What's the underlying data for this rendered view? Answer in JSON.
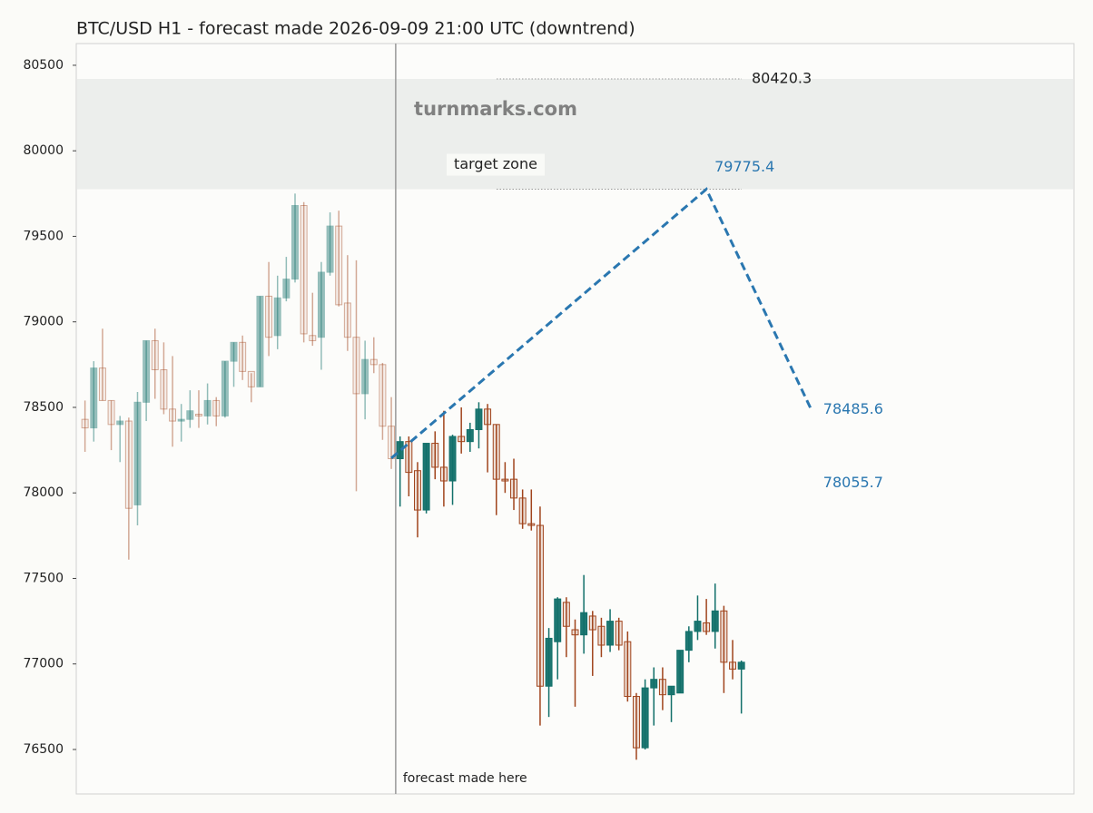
{
  "chart_data": {
    "type": "candlestick",
    "title": "BTC/USD H1 - forecast made 2026-09-09 21:00 UTC (downtrend)",
    "ylim": [
      76240,
      80627
    ],
    "yticks": [
      76500,
      77000,
      77500,
      78000,
      78500,
      79000,
      79500,
      80000,
      80500
    ],
    "xlim": [
      -1,
      113
    ],
    "up_color": "#12706a",
    "down_color": "#a0441c",
    "candles": [
      {
        "opacity": 0.45,
        "open": [
          78430,
          78380,
          78730,
          78540,
          78400,
          78420,
          77930,
          78530,
          78890,
          78720,
          78490,
          78420,
          78430,
          78460,
          78450,
          78540,
          78450,
          78770,
          78880,
          78710,
          78620,
          79150,
          78920,
          79140,
          79250,
          79680,
          78920,
          78910,
          79290,
          79560,
          79110,
          78910,
          78580,
          78780,
          78750,
          78390
        ],
        "high": [
          78540,
          78770,
          78960,
          78540,
          78450,
          78440,
          78590,
          78890,
          78960,
          78880,
          78800,
          78520,
          78600,
          78600,
          78640,
          78560,
          78770,
          78880,
          78920,
          78700,
          79150,
          79350,
          79270,
          79380,
          79750,
          79700,
          79170,
          79350,
          79640,
          79650,
          79390,
          79360,
          78890,
          78910,
          78760,
          78560
        ],
        "low": [
          78240,
          78300,
          78540,
          78250,
          78180,
          77610,
          77810,
          78420,
          78550,
          78460,
          78270,
          78300,
          78380,
          78380,
          78400,
          78390,
          78440,
          78620,
          78660,
          78530,
          78620,
          78800,
          78840,
          79120,
          79230,
          78880,
          78860,
          78720,
          79270,
          79090,
          78830,
          78010,
          78430,
          78700,
          78310,
          78140
        ],
        "close": [
          78380,
          78730,
          78540,
          78400,
          78420,
          77910,
          78530,
          78890,
          78720,
          78490,
          78420,
          78430,
          78480,
          78450,
          78540,
          78450,
          78770,
          78880,
          78710,
          78620,
          79150,
          78910,
          79140,
          79250,
          79680,
          78930,
          78890,
          79290,
          79560,
          79100,
          78910,
          78580,
          78780,
          78750,
          78390,
          78200
        ]
      },
      {
        "opacity": 1,
        "open": [
          78200,
          78300,
          78130,
          77900,
          78290,
          78150,
          78070,
          78330,
          78300,
          78370,
          78490,
          78400,
          78080,
          78080,
          77970,
          77820,
          77810,
          76870,
          77130,
          77360,
          77200,
          77170,
          77280,
          77220,
          77110,
          77250,
          77130,
          76810,
          76510,
          76860,
          76910,
          76820,
          76830,
          77080,
          77190,
          77240,
          77190,
          77310,
          77010,
          76970
        ],
        "high": [
          78330,
          78330,
          78180,
          78290,
          78360,
          78480,
          78340,
          78500,
          78410,
          78530,
          78520,
          78400,
          78180,
          78200,
          78020,
          78020,
          77920,
          77210,
          77390,
          77390,
          77260,
          77520,
          77310,
          77270,
          77320,
          77270,
          77190,
          76830,
          76910,
          76980,
          76980,
          76870,
          77080,
          77220,
          77400,
          77380,
          77470,
          77340,
          77140,
          77020
        ],
        "low": [
          77920,
          77980,
          77740,
          77880,
          78080,
          77920,
          77930,
          78230,
          78240,
          78260,
          78120,
          77870,
          78000,
          77900,
          77790,
          77780,
          76640,
          76690,
          76910,
          77040,
          76750,
          77060,
          76930,
          77040,
          77070,
          77080,
          76780,
          76440,
          76500,
          76640,
          76730,
          76660,
          76830,
          77010,
          77140,
          77170,
          77090,
          76830,
          76910,
          76710
        ],
        "close": [
          78300,
          78120,
          77900,
          78290,
          78150,
          78070,
          78330,
          78300,
          78370,
          78490,
          78400,
          78080,
          78070,
          77970,
          77820,
          77810,
          76870,
          77150,
          77380,
          77220,
          77170,
          77300,
          77200,
          77110,
          77250,
          77110,
          76810,
          76510,
          76860,
          76910,
          76820,
          76870,
          77080,
          77190,
          77250,
          77190,
          77310,
          77010,
          76970,
          77010
        ]
      }
    ],
    "forecast": {
      "color": "#2a77b0",
      "x": [
        35,
        71,
        83
      ],
      "values": [
        78203,
        79775.4,
        78485.6
      ]
    },
    "extra_levels": [
      78055.7
    ],
    "target_zone": {
      "label": "target zone",
      "range": [
        79775.4,
        80420.3
      ]
    },
    "watermark": "turnmarks.com",
    "annotation": "forecast made here"
  }
}
